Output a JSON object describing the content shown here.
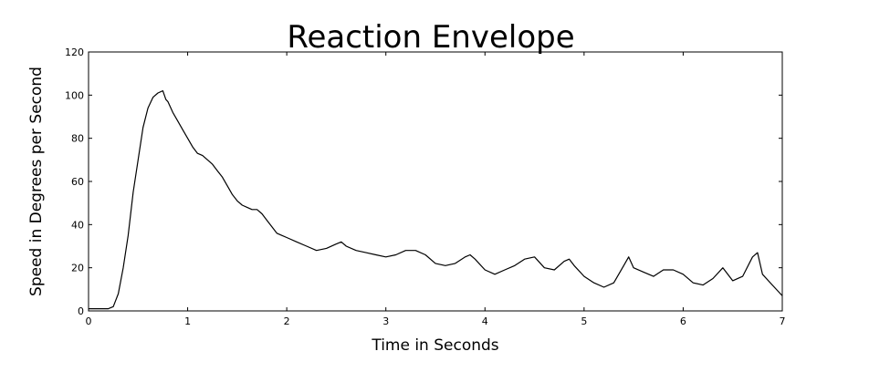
{
  "chart_data": {
    "type": "line",
    "title": "Reaction Envelope",
    "xlabel": "Time in Seconds",
    "ylabel": "Speed in Degrees per Second",
    "xlim": [
      0,
      7
    ],
    "ylim": [
      0,
      120
    ],
    "xticks": [
      0,
      1,
      2,
      3,
      4,
      5,
      6,
      7
    ],
    "yticks": [
      0,
      20,
      40,
      60,
      80,
      100,
      120
    ],
    "grid": false,
    "line_color": "#000000",
    "series": [
      {
        "x": [
          0.0,
          0.05,
          0.1,
          0.15,
          0.2,
          0.25,
          0.3,
          0.35,
          0.4,
          0.45,
          0.5,
          0.55,
          0.6,
          0.65,
          0.7,
          0.75,
          0.78,
          0.8,
          0.85,
          0.9,
          0.95,
          1.0,
          1.05,
          1.1,
          1.15,
          1.2,
          1.25,
          1.3,
          1.35,
          1.4,
          1.45,
          1.5,
          1.55,
          1.6,
          1.65,
          1.7,
          1.75,
          1.8,
          1.85,
          1.9,
          1.95,
          2.0,
          2.1,
          2.2,
          2.3,
          2.4,
          2.5,
          2.55,
          2.6,
          2.7,
          2.8,
          2.9,
          3.0,
          3.1,
          3.2,
          3.3,
          3.4,
          3.5,
          3.6,
          3.7,
          3.8,
          3.85,
          3.9,
          4.0,
          4.1,
          4.2,
          4.3,
          4.4,
          4.5,
          4.6,
          4.7,
          4.8,
          4.85,
          4.9,
          5.0,
          5.1,
          5.2,
          5.3,
          5.4,
          5.45,
          5.5,
          5.6,
          5.7,
          5.8,
          5.9,
          6.0,
          6.1,
          6.2,
          6.3,
          6.4,
          6.5,
          6.6,
          6.7,
          6.75,
          6.8,
          6.9,
          7.0
        ],
        "y": [
          1,
          1,
          1,
          1,
          1,
          2,
          8,
          20,
          35,
          55,
          70,
          85,
          94,
          99,
          101,
          102,
          98,
          97,
          92,
          88,
          84,
          80,
          76,
          73,
          72,
          70,
          68,
          65,
          62,
          58,
          54,
          51,
          49,
          48,
          47,
          47,
          45,
          42,
          39,
          36,
          35,
          34,
          32,
          30,
          28,
          29,
          31,
          32,
          30,
          28,
          27,
          26,
          25,
          26,
          28,
          28,
          26,
          22,
          21,
          22,
          25,
          26,
          24,
          19,
          17,
          19,
          21,
          24,
          25,
          20,
          19,
          23,
          24,
          21,
          16,
          13,
          11,
          13,
          21,
          25,
          20,
          18,
          16,
          19,
          19,
          17,
          13,
          12,
          15,
          20,
          14,
          16,
          25,
          27,
          17,
          12,
          7
        ]
      }
    ]
  }
}
